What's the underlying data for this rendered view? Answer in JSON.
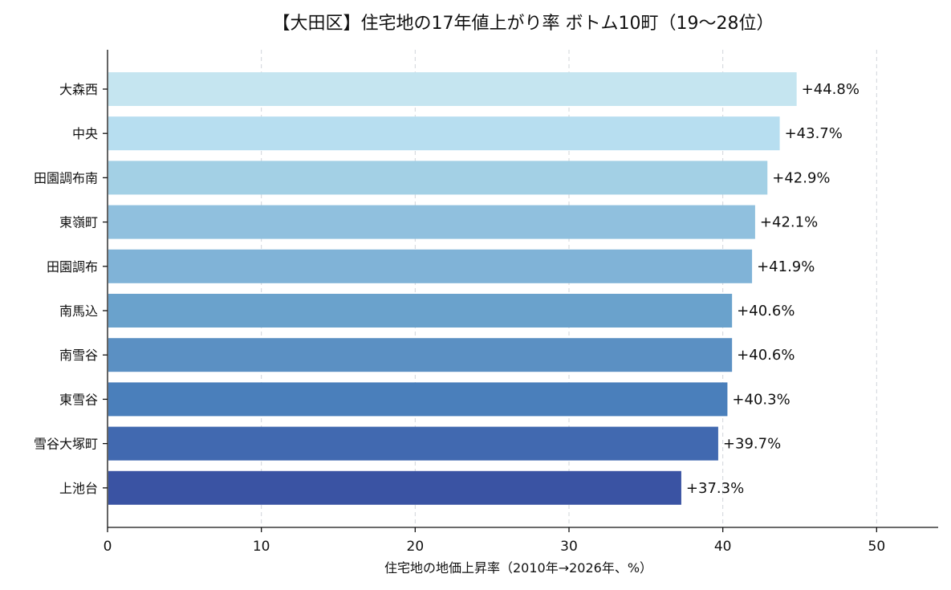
{
  "chart_data": {
    "type": "bar",
    "orientation": "horizontal",
    "title": "【大田区】住宅地の17年値上がり率 ボトム10町（19〜28位）",
    "xlabel": "住宅地の地価上昇率（2010年→2026年、%）",
    "ylabel": "",
    "xlim": [
      0,
      54
    ],
    "xticks": [
      0,
      10,
      20,
      30,
      40,
      50
    ],
    "grid": "vertical-dashed",
    "categories": [
      "大森西",
      "中央",
      "田園調布南",
      "東嶺町",
      "田園調布",
      "南馬込",
      "南雪谷",
      "東雪谷",
      "雪谷大塚町",
      "上池台"
    ],
    "values": [
      44.8,
      43.7,
      42.9,
      42.1,
      41.9,
      40.6,
      40.6,
      40.3,
      39.7,
      37.3
    ],
    "value_labels": [
      "+44.8%",
      "+43.7%",
      "+42.9%",
      "+42.1%",
      "+41.9%",
      "+40.6%",
      "+40.6%",
      "+40.3%",
      "+39.7%",
      "+37.3%"
    ],
    "colors": [
      "#c5e5f0",
      "#b7def0",
      "#a3d0e5",
      "#90c0de",
      "#80b3d7",
      "#6aa2cc",
      "#5b90c3",
      "#4a7fbb",
      "#4169b0",
      "#3a53a3"
    ]
  }
}
